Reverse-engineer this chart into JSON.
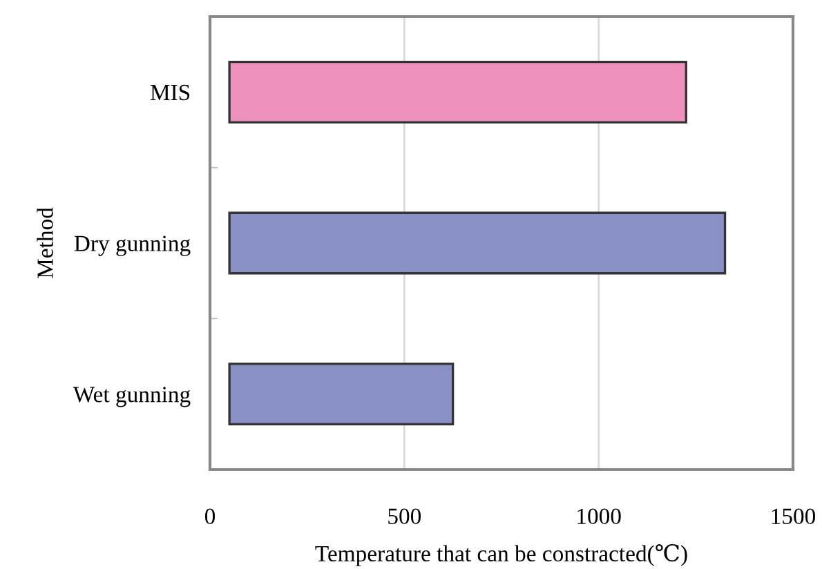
{
  "chart_data": {
    "type": "bar",
    "orientation": "horizontal",
    "xlabel": "Temperature that can be constracted(℃)",
    "ylabel": "Method",
    "categories": [
      "MIS",
      "Dry gunning",
      "Wet gunning"
    ],
    "base": [
      50,
      50,
      50
    ],
    "values": [
      1175,
      1275,
      575
    ],
    "colors": [
      "#ee90bc",
      "#8890c4",
      "#8890c4"
    ],
    "xlim": [
      0,
      1500
    ],
    "xticks": [
      0,
      500,
      1000,
      1500
    ],
    "grid": "x"
  }
}
